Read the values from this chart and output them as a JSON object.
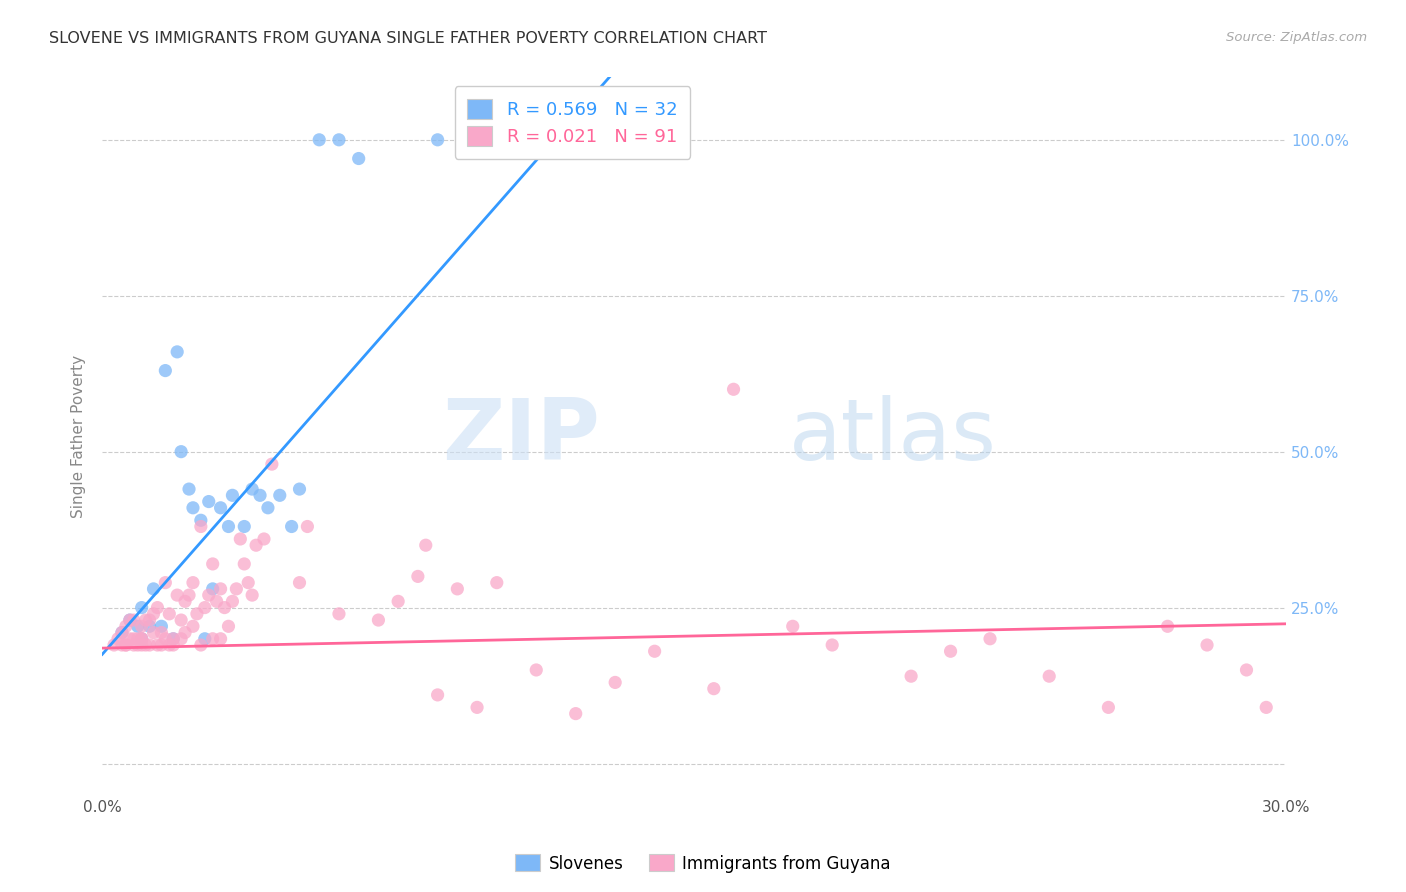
{
  "title": "SLOVENE VS IMMIGRANTS FROM GUYANA SINGLE FATHER POVERTY CORRELATION CHART",
  "source": "Source: ZipAtlas.com",
  "ylabel": "Single Father Poverty",
  "xlim": [
    0.0,
    0.3
  ],
  "ylim": [
    -0.05,
    1.1
  ],
  "blue_R": 0.569,
  "blue_N": 32,
  "pink_R": 0.021,
  "pink_N": 91,
  "blue_color": "#7eb8f7",
  "pink_color": "#f9a8c9",
  "blue_line_color": "#3399ff",
  "pink_line_color": "#ff6699",
  "legend_label_blue": "Slovenes",
  "legend_label_pink": "Immigrants from Guyana",
  "blue_scatter_x": [
    0.005,
    0.007,
    0.009,
    0.01,
    0.01,
    0.012,
    0.013,
    0.015,
    0.016,
    0.018,
    0.019,
    0.02,
    0.022,
    0.023,
    0.025,
    0.026,
    0.027,
    0.028,
    0.03,
    0.032,
    0.033,
    0.036,
    0.038,
    0.04,
    0.042,
    0.045,
    0.048,
    0.05,
    0.055,
    0.06,
    0.065,
    0.085
  ],
  "blue_scatter_y": [
    0.21,
    0.23,
    0.22,
    0.2,
    0.25,
    0.22,
    0.28,
    0.22,
    0.63,
    0.2,
    0.66,
    0.5,
    0.44,
    0.41,
    0.39,
    0.2,
    0.42,
    0.28,
    0.41,
    0.38,
    0.43,
    0.38,
    0.44,
    0.43,
    0.41,
    0.43,
    0.38,
    0.44,
    1.0,
    1.0,
    0.97,
    1.0
  ],
  "pink_scatter_x": [
    0.003,
    0.004,
    0.005,
    0.005,
    0.006,
    0.006,
    0.006,
    0.007,
    0.007,
    0.008,
    0.008,
    0.008,
    0.009,
    0.009,
    0.01,
    0.01,
    0.01,
    0.01,
    0.011,
    0.011,
    0.012,
    0.012,
    0.013,
    0.013,
    0.014,
    0.014,
    0.015,
    0.015,
    0.016,
    0.016,
    0.017,
    0.017,
    0.018,
    0.018,
    0.019,
    0.02,
    0.02,
    0.021,
    0.021,
    0.022,
    0.023,
    0.023,
    0.024,
    0.025,
    0.025,
    0.026,
    0.027,
    0.028,
    0.028,
    0.029,
    0.03,
    0.03,
    0.031,
    0.032,
    0.033,
    0.034,
    0.035,
    0.036,
    0.037,
    0.038,
    0.039,
    0.041,
    0.043,
    0.05,
    0.052,
    0.06,
    0.07,
    0.075,
    0.08,
    0.082,
    0.085,
    0.09,
    0.095,
    0.1,
    0.11,
    0.12,
    0.13,
    0.14,
    0.155,
    0.16,
    0.175,
    0.185,
    0.205,
    0.215,
    0.225,
    0.24,
    0.255,
    0.27,
    0.28,
    0.29,
    0.295
  ],
  "pink_scatter_y": [
    0.19,
    0.2,
    0.19,
    0.21,
    0.19,
    0.19,
    0.22,
    0.2,
    0.23,
    0.19,
    0.2,
    0.23,
    0.19,
    0.2,
    0.19,
    0.2,
    0.2,
    0.22,
    0.19,
    0.23,
    0.19,
    0.23,
    0.21,
    0.24,
    0.19,
    0.25,
    0.19,
    0.21,
    0.2,
    0.29,
    0.19,
    0.24,
    0.19,
    0.2,
    0.27,
    0.2,
    0.23,
    0.21,
    0.26,
    0.27,
    0.22,
    0.29,
    0.24,
    0.19,
    0.38,
    0.25,
    0.27,
    0.2,
    0.32,
    0.26,
    0.2,
    0.28,
    0.25,
    0.22,
    0.26,
    0.28,
    0.36,
    0.32,
    0.29,
    0.27,
    0.35,
    0.36,
    0.48,
    0.29,
    0.38,
    0.24,
    0.23,
    0.26,
    0.3,
    0.35,
    0.11,
    0.28,
    0.09,
    0.29,
    0.15,
    0.08,
    0.13,
    0.18,
    0.12,
    0.6,
    0.22,
    0.19,
    0.14,
    0.18,
    0.2,
    0.14,
    0.09,
    0.22,
    0.19,
    0.15,
    0.09
  ],
  "blue_line_intercept": 0.175,
  "blue_line_slope": 7.2,
  "pink_line_intercept": 0.185,
  "pink_line_slope": 0.13,
  "watermark_zip": "ZIP",
  "watermark_atlas": "atlas",
  "background_color": "#ffffff",
  "grid_color": "#cccccc",
  "title_color": "#333333",
  "right_tick_color": "#7eb8f7",
  "ylabel_color": "#888888",
  "legend_text_color_blue": "#3399ff",
  "legend_text_color_pink": "#ff6699"
}
